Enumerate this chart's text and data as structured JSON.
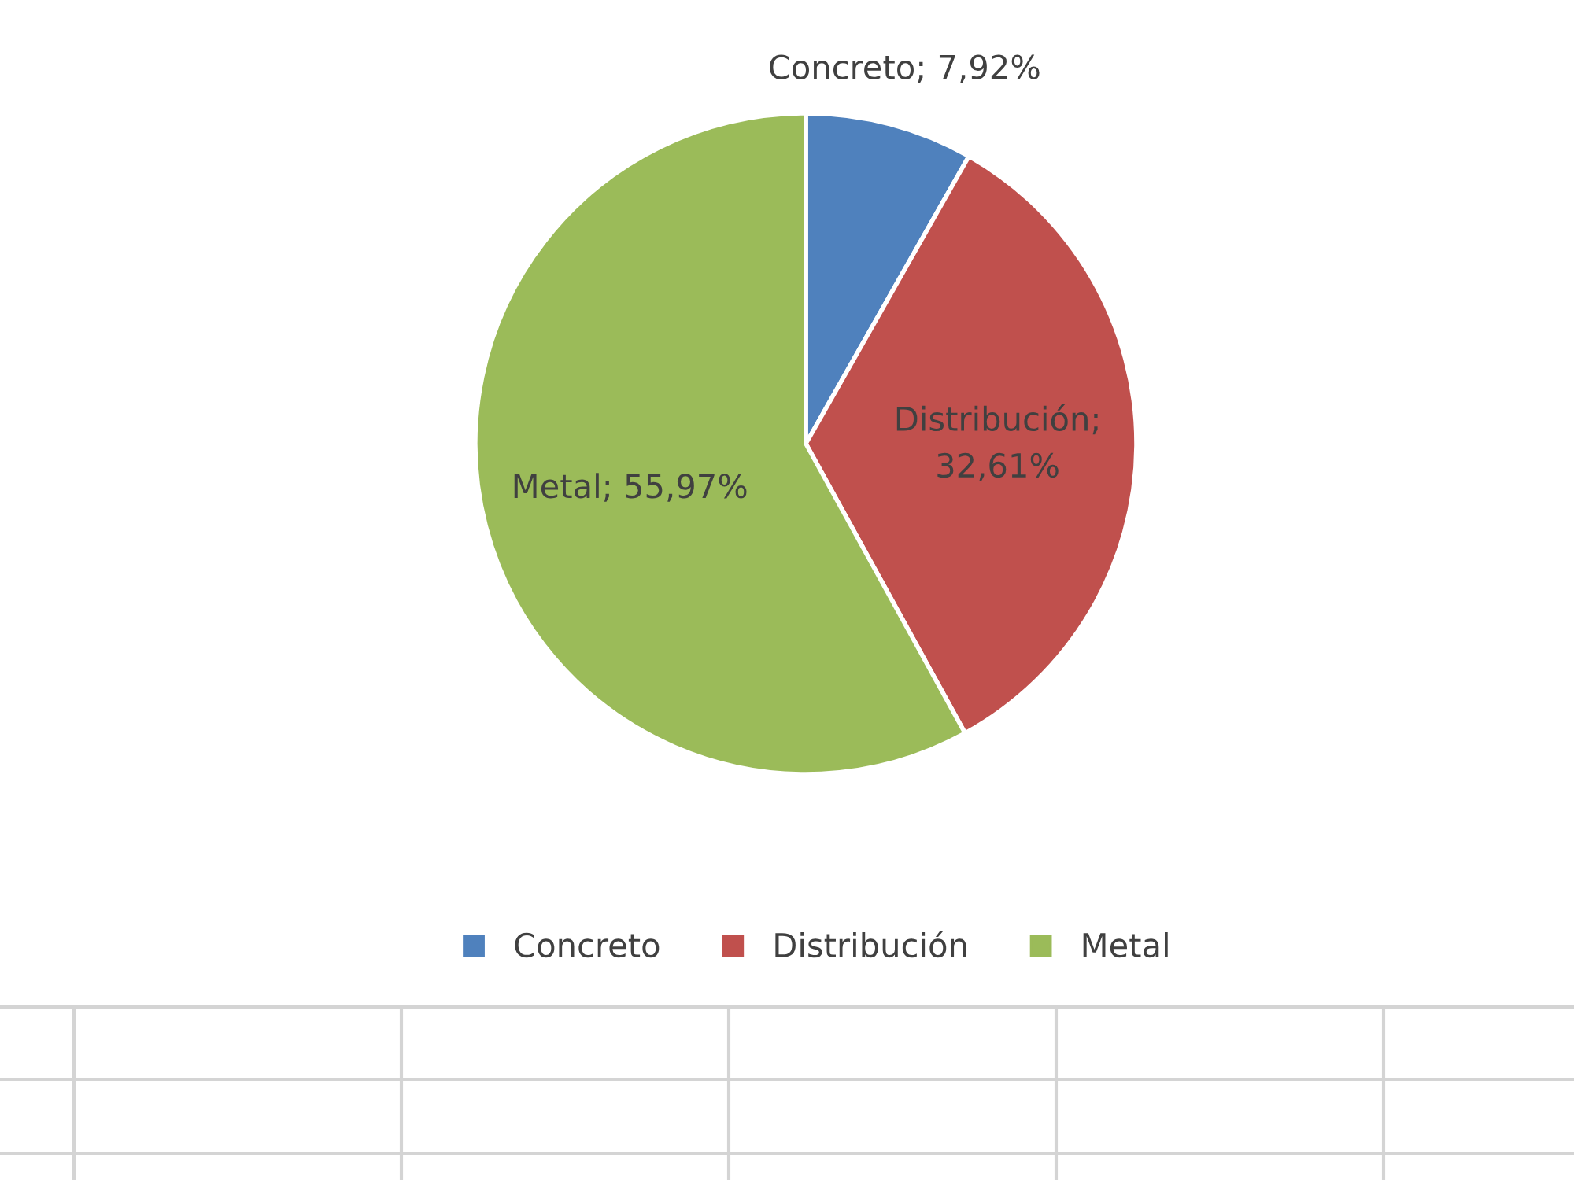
{
  "chart_data": {
    "type": "pie",
    "categories": [
      "Concreto",
      "Distribución",
      "Metal"
    ],
    "values": [
      7.92,
      32.61,
      55.97
    ],
    "colors": [
      "#4f81bd",
      "#c0504d",
      "#9bbb59"
    ],
    "value_labels": [
      "Concreto; 7,92%",
      "Distribución;\n32,61%",
      "Metal; 55,97%"
    ],
    "legend": "bottom"
  }
}
